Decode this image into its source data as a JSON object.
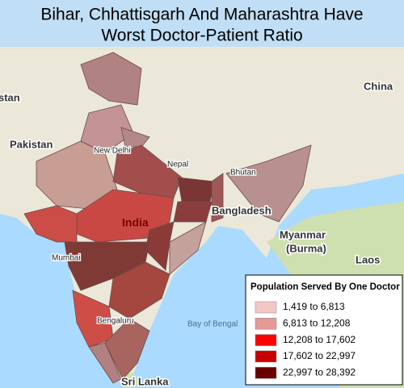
{
  "header": {
    "title_lines": [
      "Bihar, Chhattisgarh And Maharashtra Have",
      "Worst Doctor-Patient Ratio"
    ]
  },
  "map": {
    "labels": {
      "afghanistan": "stan",
      "pakistan": "Pakistan",
      "china": "China",
      "nepal": "Nepal",
      "bhutan": "Bhutan",
      "bangladesh": "Bangladesh",
      "myanmar": "Myanmar",
      "burma": "(Burma)",
      "laos": "Laos",
      "india": "India",
      "new_delhi": "New Delhi",
      "mumbai": "Mumbai",
      "bengaluru": "Bengaluru",
      "bay_of_bengal": "Bay of Bengal",
      "sri_lanka": "Sri Lanka"
    }
  },
  "legend": {
    "title": "Population Served By One Doctor",
    "items": [
      {
        "label": "1,419 to 6,813",
        "color": "#f4c7c7"
      },
      {
        "label": "6,813 to 12,208",
        "color": "#e59a9a"
      },
      {
        "label": "12,208 to 17,602",
        "color": "#ff0000"
      },
      {
        "label": "17,602 to 22,997",
        "color": "#c80000"
      },
      {
        "label": "22,997 to 28,392",
        "color": "#6a0000"
      }
    ]
  }
}
